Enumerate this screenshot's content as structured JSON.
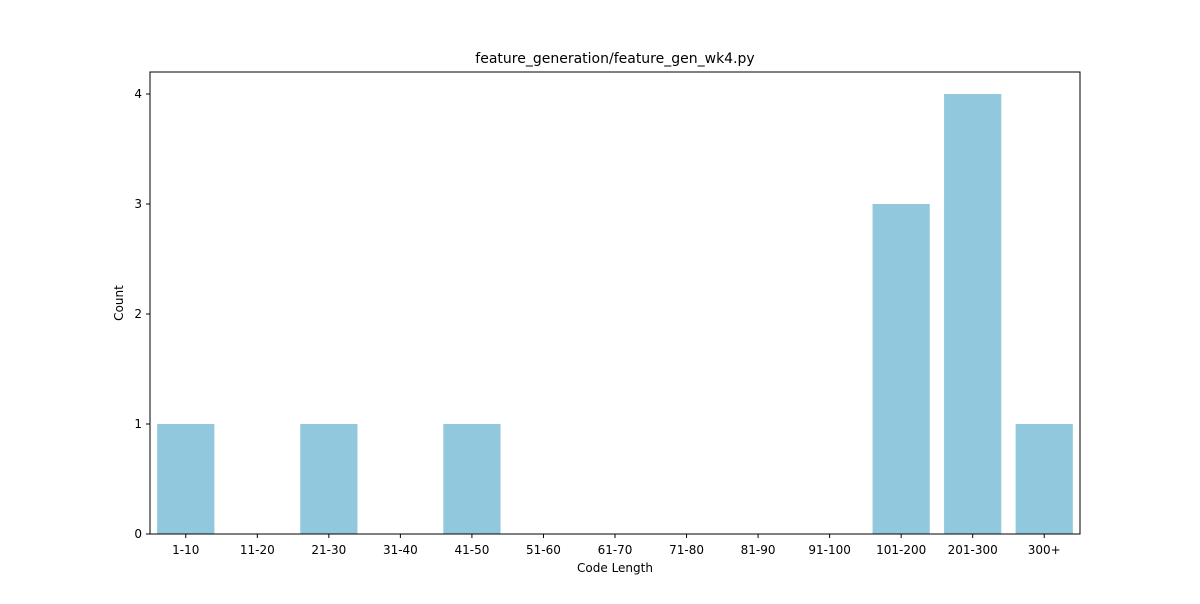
{
  "chart_data": {
    "type": "bar",
    "title": "feature_generation/feature_gen_wk4.py",
    "xlabel": "Code Length",
    "ylabel": "Count",
    "categories": [
      "1-10",
      "11-20",
      "21-30",
      "31-40",
      "41-50",
      "51-60",
      "61-70",
      "71-80",
      "81-90",
      "91-100",
      "101-200",
      "201-300",
      "300+"
    ],
    "values": [
      1,
      0,
      1,
      0,
      1,
      0,
      0,
      0,
      0,
      0,
      3,
      4,
      1
    ],
    "ylim": [
      0,
      4.2
    ],
    "yticks": [
      "0",
      "1",
      "2",
      "3",
      "4"
    ],
    "grid": false,
    "bar_color": "#92c8de"
  }
}
